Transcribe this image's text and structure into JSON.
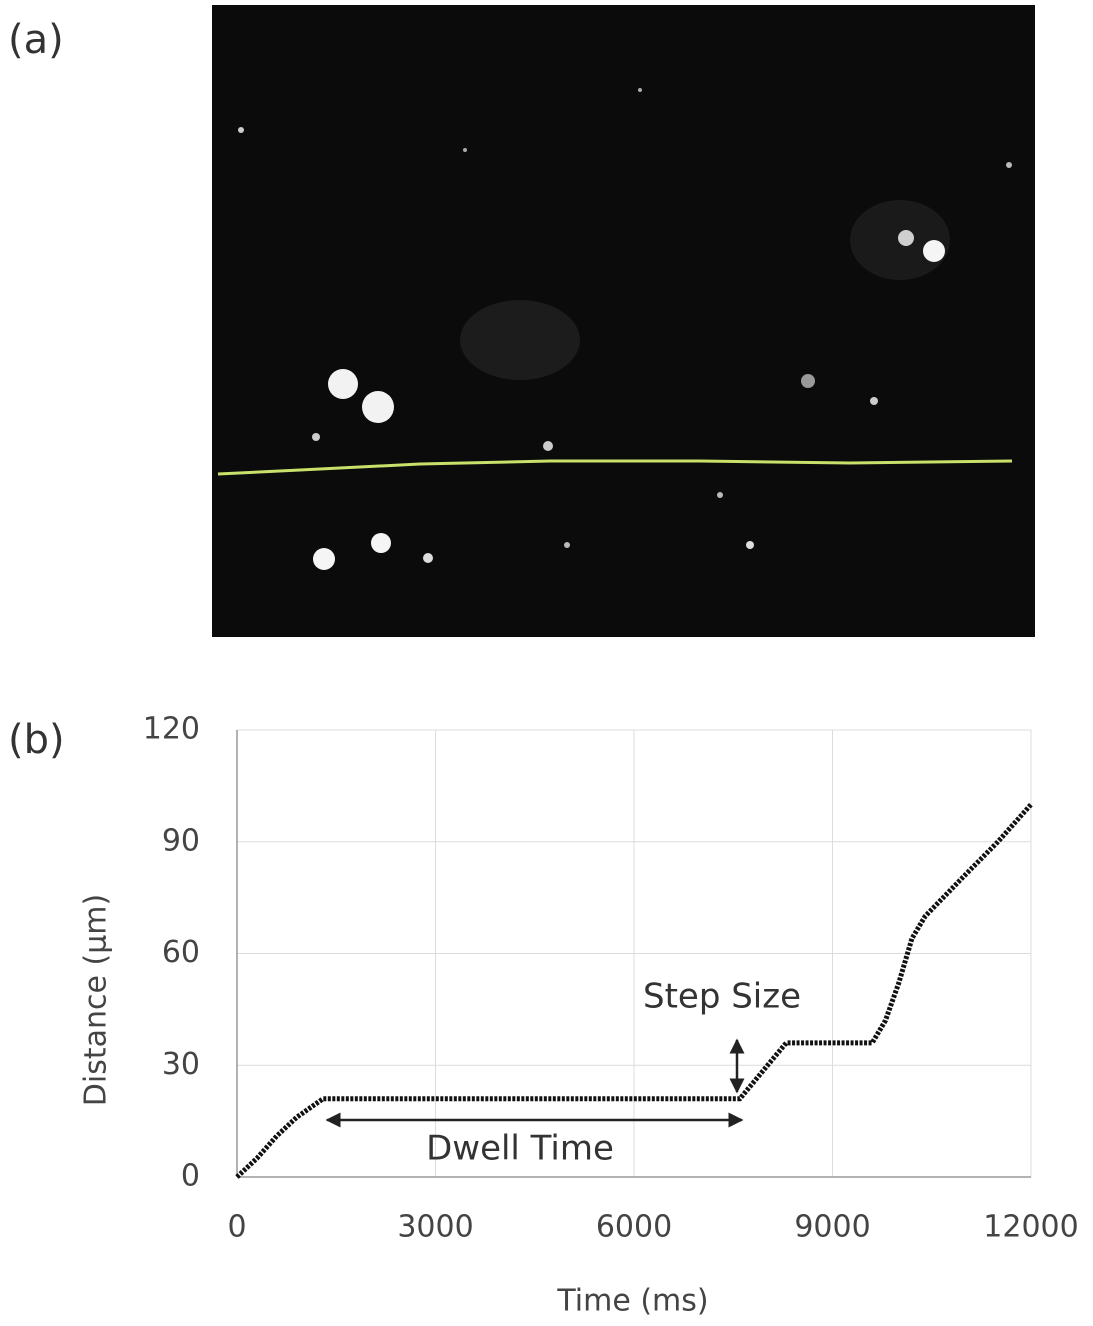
{
  "panel_labels": [
    "(a)",
    "(b)"
  ],
  "chart_data": {
    "type": "line",
    "xlabel": "Time (ms)",
    "ylabel": "Distance (µm)",
    "x": [
      0,
      300,
      600,
      900,
      1300,
      2000,
      3000,
      4000,
      5000,
      6000,
      7000,
      7600,
      7950,
      8300,
      9000,
      9600,
      9800,
      10000,
      10200,
      10400,
      11000,
      11500,
      12000
    ],
    "series": [
      {
        "color": "#111111",
        "values": [
          0,
          5,
          11,
          16,
          21,
          21,
          21,
          21,
          21,
          21,
          21,
          21,
          28.5,
          36,
          36,
          36,
          42,
          52,
          64,
          70,
          81,
          90,
          100
        ]
      }
    ],
    "xlim": [
      0,
      12000
    ],
    "xticks": [
      0,
      3000,
      6000,
      9000,
      12000
    ],
    "ylim": [
      0,
      120
    ],
    "yticks": [
      0,
      30,
      60,
      90,
      120
    ],
    "grid": true,
    "annotations": [
      "Step Size",
      "Dwell Time"
    ]
  }
}
